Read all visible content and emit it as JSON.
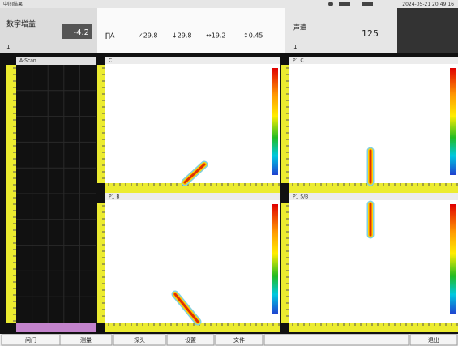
{
  "status_bar": {
    "title": "中间结果",
    "time": "2024-05-21 20:49:16"
  },
  "gain_panel": {
    "label": "数字增益",
    "value": "-4.2",
    "sub": "1"
  },
  "readings": [
    "∏A",
    "✓29.8",
    "↓29.8",
    "↔19.2",
    "↕0.45"
  ],
  "velocity_panel": {
    "label": "声速",
    "value": "125",
    "sub": "1"
  },
  "views": {
    "a_scan": "A-Scan",
    "top_left": "C",
    "top_right": "P1 C",
    "bottom_left": "P1 B",
    "bottom_right": "P1 S/B"
  },
  "buttons": [
    "闸门",
    "测量",
    "探头",
    "设置",
    "文件",
    "退出"
  ]
}
